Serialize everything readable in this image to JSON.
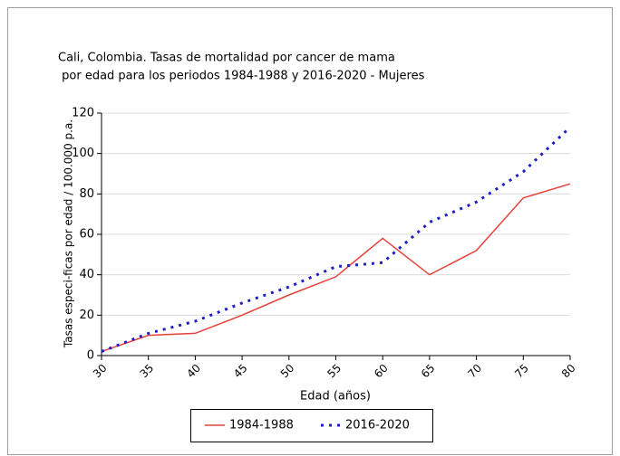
{
  "chart_data": {
    "type": "line",
    "title": [
      "Cali, Colombia. Tasas de mortalidad por cancer de mama",
      " por edad para los periodos 1984-1988 y 2016-2020 - Mujeres"
    ],
    "x_label": "Edad (años)",
    "y_label": "Tasas especi-ficas por edad / 100.000 p.a.",
    "x": [
      30,
      35,
      40,
      45,
      50,
      55,
      60,
      65,
      70,
      75,
      80
    ],
    "xlim": [
      30,
      80
    ],
    "xticks": [
      30,
      35,
      40,
      45,
      50,
      55,
      60,
      65,
      70,
      75,
      80
    ],
    "ylim": [
      0,
      120
    ],
    "yticks": [
      0,
      20,
      40,
      60,
      80,
      100,
      120
    ],
    "grid": true,
    "legend": "bottom",
    "series": [
      {
        "name": "1984-1988",
        "color": "#e8403a",
        "style": "solid",
        "values": [
          2,
          10,
          11,
          20,
          30,
          39,
          58,
          40,
          52,
          78,
          85
        ]
      },
      {
        "name": "2016-2020",
        "color": "#1f1fc8",
        "style": "dotted",
        "values": [
          2,
          11,
          17,
          26,
          34,
          44,
          46,
          66,
          76,
          91,
          113
        ]
      }
    ]
  }
}
